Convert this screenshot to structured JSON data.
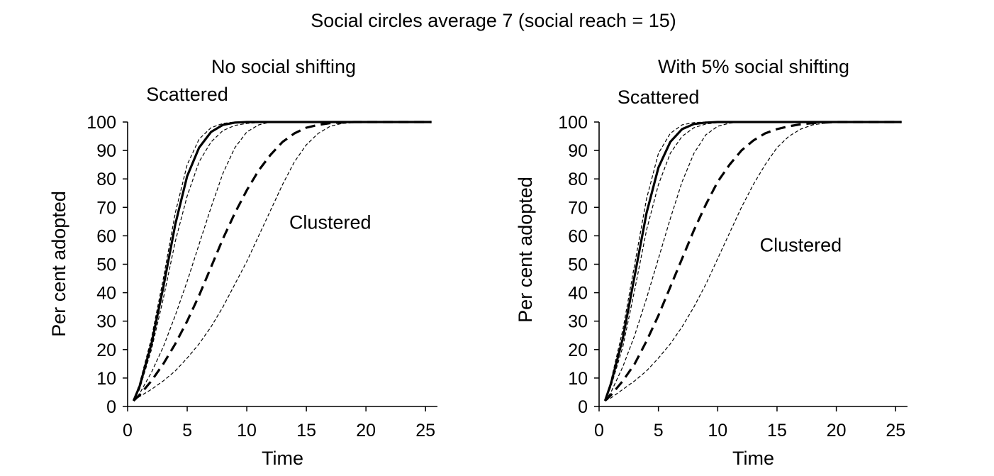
{
  "title": "Social circles average 7 (social reach = 15)",
  "chart_data": [
    {
      "type": "line",
      "title": "No social shifting",
      "xlabel": "Time",
      "ylabel": "Per cent adopted",
      "xlim": [
        0,
        26
      ],
      "ylim": [
        0,
        100
      ],
      "xticks": [
        0,
        5,
        10,
        15,
        20,
        25
      ],
      "yticks": [
        0,
        10,
        20,
        30,
        40,
        50,
        60,
        70,
        80,
        90,
        100
      ],
      "grid": false,
      "annotations": [
        {
          "text": "Scattered",
          "x": 5,
          "y": 110
        },
        {
          "text": "Clustered",
          "x": 17,
          "y": 65
        }
      ],
      "x": [
        0.5,
        1,
        2,
        3,
        4,
        5,
        6,
        7,
        8,
        9,
        10,
        11,
        12,
        13,
        14,
        15,
        16,
        17,
        18,
        19,
        20,
        22,
        25.5
      ],
      "series": [
        {
          "style": "thin-dashed",
          "values": [
            2,
            8,
            24,
            45,
            68,
            85,
            94,
            98,
            99.5,
            100,
            100,
            100,
            100,
            100,
            100,
            100,
            100,
            100,
            100,
            100,
            100,
            100,
            100
          ]
        },
        {
          "style": "solid-bold",
          "values": [
            2,
            7,
            22,
            42,
            64,
            81,
            91,
            96.5,
            99,
            99.8,
            100,
            100,
            100,
            100,
            100,
            100,
            100,
            100,
            100,
            100,
            100,
            100,
            100
          ]
        },
        {
          "style": "thin-dashed",
          "values": [
            2,
            6,
            20,
            38,
            58,
            74,
            86,
            93,
            97,
            98.8,
            99.5,
            99.8,
            100,
            100,
            100,
            100,
            100,
            100,
            100,
            100,
            100,
            100,
            100
          ]
        },
        {
          "style": "thin-dashed",
          "values": [
            2,
            4.5,
            12,
            21,
            32,
            44,
            57,
            70,
            82,
            91,
            96.5,
            99,
            100,
            100,
            100,
            100,
            100,
            100,
            100,
            100,
            100,
            100,
            100
          ]
        },
        {
          "style": "thick-dashed",
          "values": [
            2,
            4,
            9,
            15,
            22,
            30,
            39,
            49,
            59,
            68,
            76,
            83,
            88.5,
            93,
            96,
            98,
            99,
            99.6,
            99.8,
            100,
            100,
            100,
            100
          ]
        },
        {
          "style": "thin-dashed",
          "values": [
            2,
            3.5,
            6,
            9,
            12.5,
            17,
            22,
            28,
            35,
            43,
            51,
            60,
            69,
            78,
            86,
            92,
            96,
            98.5,
            99.5,
            99.8,
            100,
            100,
            100
          ]
        }
      ]
    },
    {
      "type": "line",
      "title": "With 5% social shifting",
      "xlabel": "Time",
      "ylabel": "Per cent adopted",
      "xlim": [
        0,
        26
      ],
      "ylim": [
        0,
        100
      ],
      "xticks": [
        0,
        5,
        10,
        15,
        20,
        25
      ],
      "yticks": [
        0,
        10,
        20,
        30,
        40,
        50,
        60,
        70,
        80,
        90,
        100
      ],
      "grid": false,
      "annotations": [
        {
          "text": "Scattered",
          "x": 5,
          "y": 109
        },
        {
          "text": "Clustered",
          "x": 17,
          "y": 57
        }
      ],
      "x": [
        0.5,
        1,
        2,
        3,
        4,
        5,
        6,
        7,
        8,
        9,
        10,
        11,
        12,
        13,
        14,
        15,
        16,
        17,
        18,
        19,
        20,
        22,
        25.5
      ],
      "series": [
        {
          "style": "thin-dashed",
          "values": [
            2,
            9,
            27,
            50,
            73,
            89,
            96,
            99,
            99.8,
            100,
            100,
            100,
            100,
            100,
            100,
            100,
            100,
            100,
            100,
            100,
            100,
            100,
            100
          ]
        },
        {
          "style": "solid-bold",
          "values": [
            2,
            8,
            24,
            46,
            68,
            84,
            93,
            97.5,
            99.3,
            99.8,
            100,
            100,
            100,
            100,
            100,
            100,
            100,
            100,
            100,
            100,
            100,
            100,
            100
          ]
        },
        {
          "style": "thin-dashed",
          "values": [
            2,
            7,
            21,
            41,
            62,
            78,
            89,
            95,
            98,
            99.3,
            99.8,
            100,
            100,
            100,
            100,
            100,
            100,
            100,
            100,
            100,
            100,
            100,
            100
          ]
        },
        {
          "style": "thin-dashed",
          "values": [
            2,
            5,
            14,
            25,
            38,
            52,
            66,
            79,
            89,
            95.5,
            98.5,
            99.6,
            100,
            100,
            100,
            100,
            100,
            100,
            100,
            100,
            100,
            100,
            100
          ]
        },
        {
          "style": "thick-dashed",
          "values": [
            2,
            4,
            9,
            15,
            23,
            32,
            42,
            52,
            62,
            71,
            79,
            85,
            90,
            93.5,
            96,
            97.5,
            98.5,
            99.2,
            99.6,
            99.8,
            100,
            100,
            100
          ]
        },
        {
          "style": "thin-dashed",
          "values": [
            2,
            3,
            6,
            9,
            12.5,
            17,
            22,
            28,
            35,
            43,
            52,
            61,
            70,
            78,
            85,
            91,
            95,
            97.5,
            99,
            99.6,
            99.9,
            100,
            100
          ]
        }
      ]
    }
  ]
}
